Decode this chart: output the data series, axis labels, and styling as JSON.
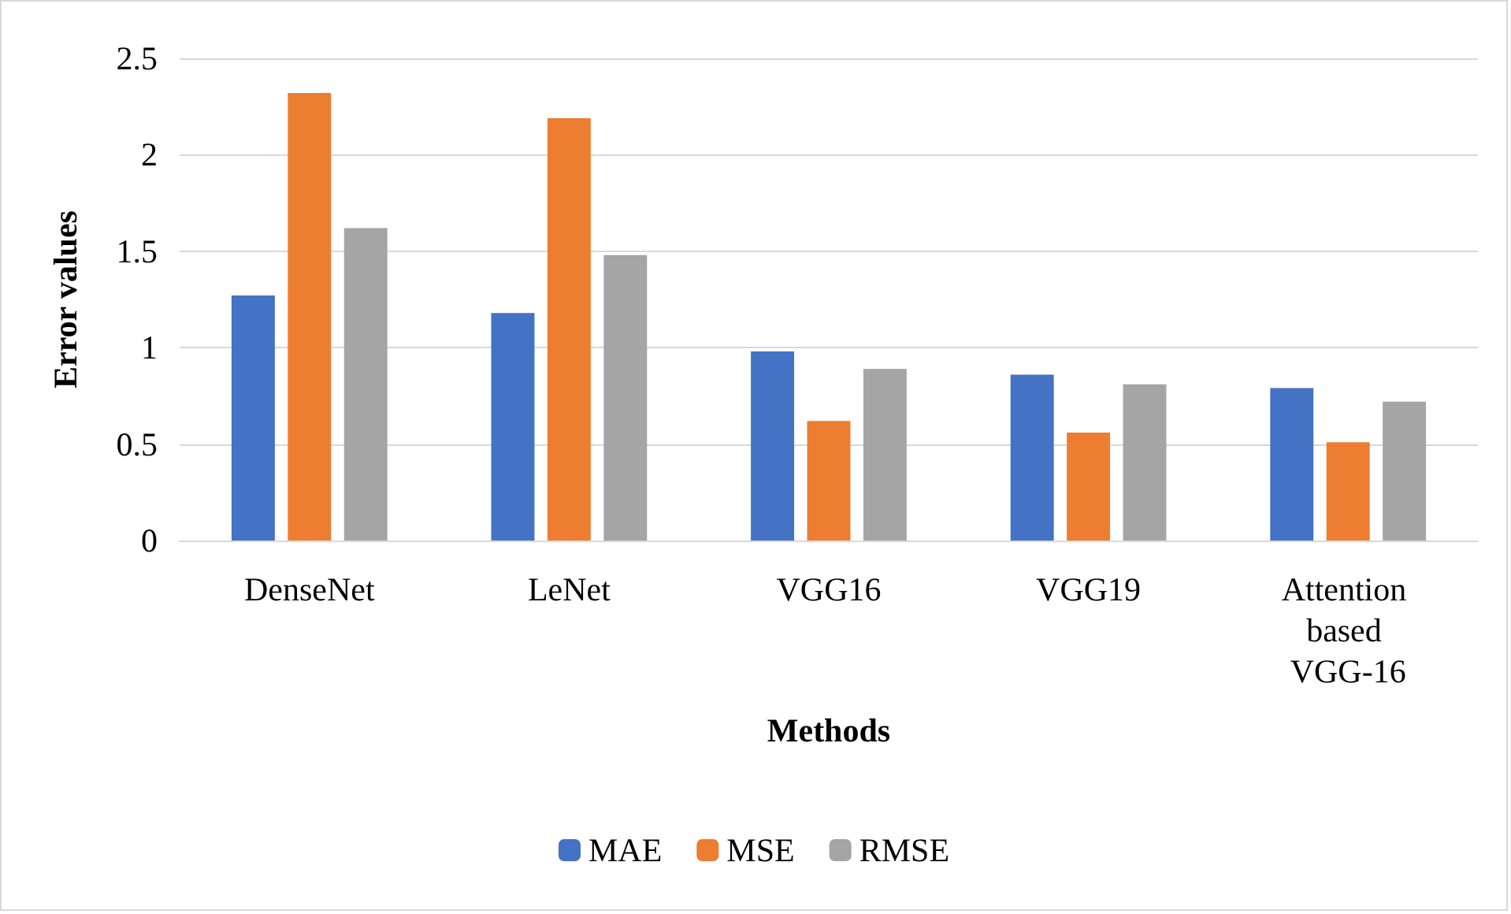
{
  "chart_data": {
    "type": "bar",
    "xlabel": "Methods",
    "ylabel": "Error values",
    "categories": [
      "DenseNet",
      "LeNet",
      "VGG16",
      "VGG19",
      "Attention based VGG-16"
    ],
    "series": [
      {
        "name": "MAE",
        "color": "#4472c4",
        "values": [
          1.27,
          1.18,
          0.98,
          0.86,
          0.79
        ]
      },
      {
        "name": "MSE",
        "color": "#ed7d31",
        "values": [
          2.32,
          2.19,
          0.62,
          0.56,
          0.51
        ]
      },
      {
        "name": "RMSE",
        "color": "#a5a5a5",
        "values": [
          1.62,
          1.48,
          0.89,
          0.81,
          0.72
        ]
      }
    ],
    "ylim": [
      0,
      2.5
    ],
    "yticks": [
      0,
      0.5,
      1,
      1.5,
      2,
      2.5
    ],
    "grid": "y",
    "legend": "bottom"
  }
}
